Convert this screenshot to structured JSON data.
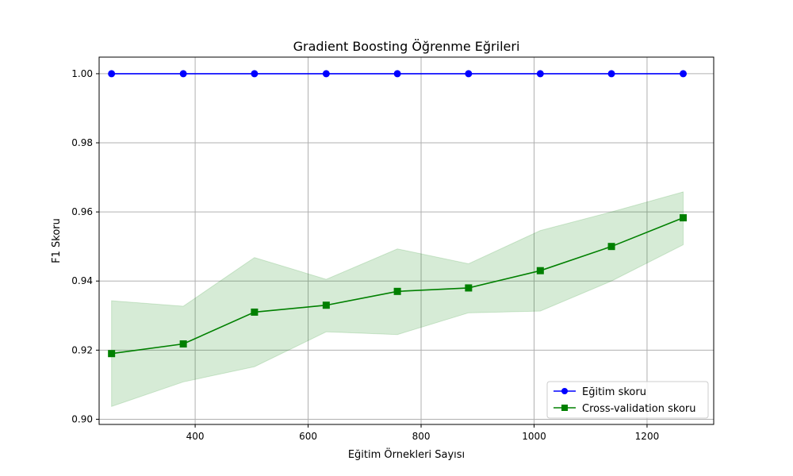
{
  "chart_data": {
    "type": "line",
    "title": "Gradient Boosting Öğrenme Eğrileri",
    "xlabel": "Eğitim Örnekleri Sayısı",
    "ylabel": "F1 Skoru",
    "xlim": [
      230,
      1318
    ],
    "ylim": [
      0.8985,
      1.0048
    ],
    "x_ticks": [
      400,
      600,
      800,
      1000,
      1200
    ],
    "y_ticks": [
      0.9,
      0.92,
      0.94,
      0.96,
      0.98,
      1.0
    ],
    "y_tick_labels": [
      "0.90",
      "0.92",
      "0.94",
      "0.96",
      "0.98",
      "1.00"
    ],
    "grid": true,
    "legend_position": "lower-right",
    "x": [
      252,
      379,
      505,
      632,
      758,
      884,
      1011,
      1137,
      1264
    ],
    "series": [
      {
        "name": "Eğitim skoru",
        "color": "#0000ff",
        "marker": "circle",
        "values": [
          1.0,
          1.0,
          1.0,
          1.0,
          1.0,
          1.0,
          1.0,
          1.0,
          1.0
        ]
      },
      {
        "name": "Cross-validation skoru",
        "color": "#008000",
        "marker": "square",
        "values": [
          0.919,
          0.9218,
          0.931,
          0.933,
          0.937,
          0.938,
          0.943,
          0.95,
          0.9583
        ],
        "band_upper": [
          0.9343,
          0.9327,
          0.9468,
          0.9405,
          0.9493,
          0.945,
          0.9546,
          0.96,
          0.9658
        ],
        "band_lower": [
          0.9037,
          0.9108,
          0.9152,
          0.9253,
          0.9245,
          0.9308,
          0.9313,
          0.94,
          0.9505
        ],
        "band_color": "#008000"
      }
    ]
  }
}
